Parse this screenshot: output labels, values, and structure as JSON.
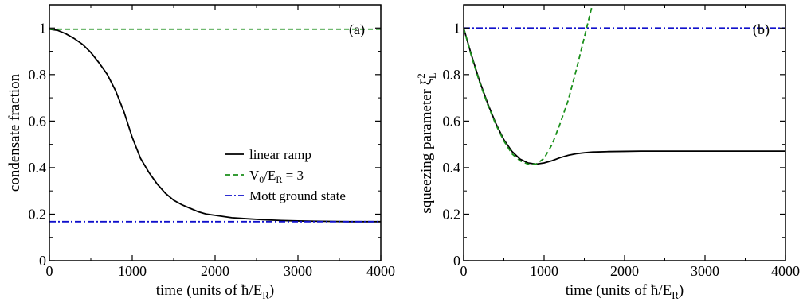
{
  "chart_data": [
    {
      "type": "line",
      "panel_label": "(a)",
      "xlabel": "time (units of ħ/E",
      "xlabel_sub": "R",
      "xlabel_tail": ")",
      "ylabel": "condensate fraction",
      "xlim": [
        0,
        4000
      ],
      "ylim": [
        0,
        1.1
      ],
      "x_ticks": [
        0,
        1000,
        2000,
        3000,
        4000
      ],
      "y_ticks": [
        0,
        0.2,
        0.4,
        0.6,
        0.8,
        1
      ],
      "x_tick_labels": [
        "0",
        "1000",
        "2000",
        "3000",
        "4000"
      ],
      "y_tick_labels": [
        "0",
        "0.2",
        "0.4",
        "0.6",
        "0.8",
        "1"
      ],
      "grid": false,
      "legend_position": "right",
      "series": [
        {
          "name": "linear ramp",
          "color": "#000000",
          "dash": "solid",
          "x": [
            0,
            100,
            200,
            300,
            400,
            500,
            600,
            700,
            800,
            900,
            1000,
            1100,
            1200,
            1300,
            1400,
            1500,
            1600,
            1700,
            1800,
            1900,
            2000,
            2200,
            2400,
            2600,
            2800,
            3000,
            3200,
            3400,
            3600,
            3800,
            4000
          ],
          "y": [
            0.995,
            0.99,
            0.975,
            0.955,
            0.93,
            0.895,
            0.85,
            0.8,
            0.73,
            0.64,
            0.53,
            0.44,
            0.38,
            0.33,
            0.29,
            0.26,
            0.24,
            0.225,
            0.21,
            0.2,
            0.195,
            0.185,
            0.18,
            0.176,
            0.173,
            0.171,
            0.17,
            0.169,
            0.168,
            0.168,
            0.168
          ]
        },
        {
          "name": "V0/ER = 3",
          "name_parts": [
            "V",
            "0",
            "/E",
            "R",
            " = 3"
          ],
          "color": "#1a8f1a",
          "dash": "dashed",
          "x": [
            0,
            4000
          ],
          "y": [
            0.995,
            0.995
          ]
        },
        {
          "name": "Mott ground state",
          "color": "#1010cc",
          "dash": "dashdot",
          "x": [
            0,
            4000
          ],
          "y": [
            0.168,
            0.168
          ]
        }
      ]
    },
    {
      "type": "line",
      "panel_label": "(b)",
      "xlabel": "time (units of ħ/E",
      "xlabel_sub": "R",
      "xlabel_tail": ")",
      "ylabel": "squeezing parameter ξ",
      "ylabel_sup": "2",
      "ylabel_sub": "L",
      "xlim": [
        0,
        4000
      ],
      "ylim": [
        0,
        1.1
      ],
      "x_ticks": [
        0,
        1000,
        2000,
        3000,
        4000
      ],
      "y_ticks": [
        0,
        0.2,
        0.4,
        0.6,
        0.8,
        1
      ],
      "x_tick_labels": [
        "0",
        "1000",
        "2000",
        "3000",
        "4000"
      ],
      "y_tick_labels": [
        "0",
        "0.2",
        "0.4",
        "0.6",
        "0.8",
        "1"
      ],
      "grid": false,
      "series": [
        {
          "name": "linear ramp",
          "color": "#000000",
          "dash": "solid",
          "x": [
            0,
            100,
            200,
            300,
            400,
            500,
            600,
            700,
            800,
            900,
            1000,
            1100,
            1200,
            1300,
            1400,
            1500,
            1600,
            1800,
            2000,
            2200,
            2500,
            3000,
            3500,
            4000
          ],
          "y": [
            1.0,
            0.88,
            0.77,
            0.675,
            0.59,
            0.52,
            0.47,
            0.437,
            0.42,
            0.415,
            0.42,
            0.43,
            0.443,
            0.453,
            0.46,
            0.464,
            0.467,
            0.469,
            0.47,
            0.471,
            0.471,
            0.471,
            0.471,
            0.471
          ]
        },
        {
          "name": "V0/ER = 3",
          "color": "#1a8f1a",
          "dash": "dashed",
          "x": [
            0,
            100,
            200,
            300,
            400,
            500,
            600,
            700,
            800,
            900,
            1000,
            1100,
            1200,
            1300,
            1400,
            1500,
            1600,
            1650
          ],
          "y": [
            1.0,
            0.875,
            0.765,
            0.67,
            0.585,
            0.515,
            0.46,
            0.43,
            0.415,
            0.415,
            0.44,
            0.5,
            0.59,
            0.69,
            0.82,
            0.96,
            1.1,
            1.2
          ]
        },
        {
          "name": "Mott ground state",
          "color": "#1010cc",
          "dash": "dashdot",
          "x": [
            0,
            4000
          ],
          "y": [
            1.0,
            1.0
          ]
        }
      ]
    }
  ]
}
